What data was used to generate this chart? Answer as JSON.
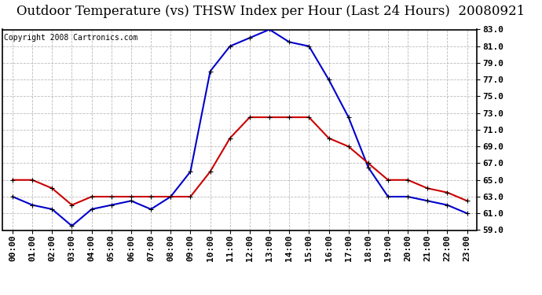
{
  "title": "Outdoor Temperature (vs) THSW Index per Hour (Last 24 Hours)  20080921",
  "copyright": "Copyright 2008 Cartronics.com",
  "hours": [
    "00:00",
    "01:00",
    "02:00",
    "03:00",
    "04:00",
    "05:00",
    "06:00",
    "07:00",
    "08:00",
    "09:00",
    "10:00",
    "11:00",
    "12:00",
    "13:00",
    "14:00",
    "15:00",
    "16:00",
    "17:00",
    "18:00",
    "19:00",
    "20:00",
    "21:00",
    "22:00",
    "23:00"
  ],
  "temp": [
    65.0,
    65.0,
    64.0,
    62.0,
    63.0,
    63.0,
    63.0,
    63.0,
    63.0,
    63.0,
    66.0,
    70.0,
    72.5,
    72.5,
    72.5,
    72.5,
    70.0,
    69.0,
    67.0,
    65.0,
    65.0,
    64.0,
    63.5,
    62.5
  ],
  "thsw": [
    63.0,
    62.0,
    61.5,
    59.5,
    61.5,
    62.0,
    62.5,
    61.5,
    63.0,
    66.0,
    78.0,
    81.0,
    82.0,
    83.0,
    81.5,
    81.0,
    77.0,
    72.5,
    66.5,
    63.0,
    63.0,
    62.5,
    62.0,
    61.0
  ],
  "temp_color": "#cc0000",
  "thsw_color": "#0000cc",
  "bg_color": "#ffffff",
  "grid_color": "#aaaaaa",
  "ylim": [
    59.0,
    83.0
  ],
  "yticks": [
    59.0,
    61.0,
    63.0,
    65.0,
    67.0,
    69.0,
    71.0,
    73.0,
    75.0,
    77.0,
    79.0,
    81.0,
    83.0
  ],
  "title_fontsize": 12,
  "copyright_fontsize": 7,
  "tick_fontsize": 8,
  "marker": "+",
  "marker_size": 5,
  "line_width": 1.5
}
